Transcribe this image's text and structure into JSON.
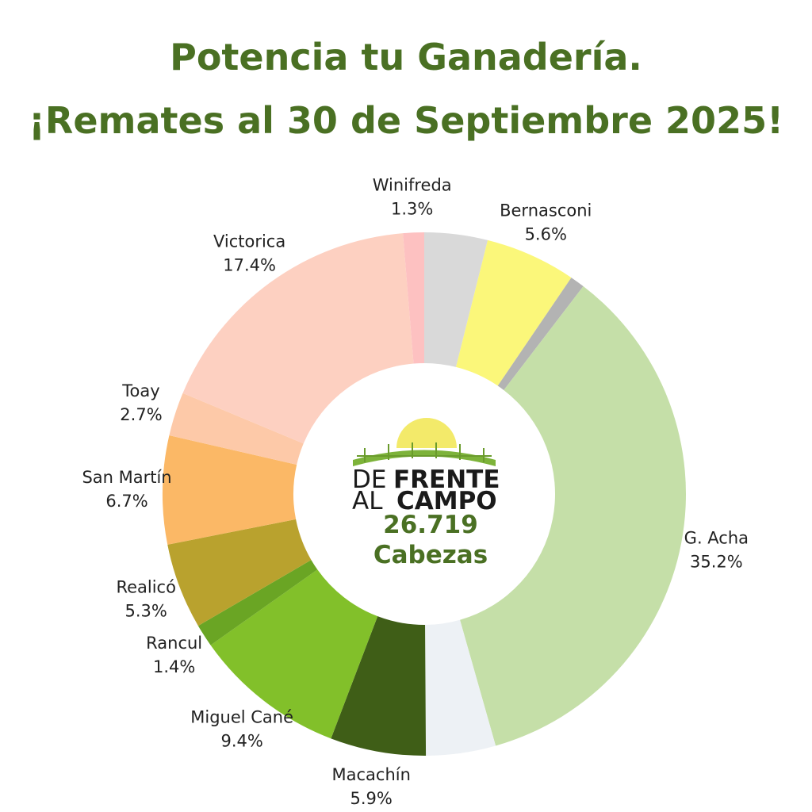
{
  "chart_data": {
    "type": "donut",
    "title": [
      "Potencia tu Ganadería.",
      "¡Remates al 30 de Septiembre 2025!"
    ],
    "categories": [
      null,
      "Bernasconi",
      null,
      "G. Acha",
      null,
      "Macachín",
      "Miguel Cané",
      "Rancul",
      "Realicó",
      "San Martín",
      "Toay",
      "Victorica",
      "Winifreda"
    ],
    "values": [
      3.9,
      5.6,
      0.9,
      35.2,
      4.3,
      5.9,
      9.4,
      1.4,
      5.3,
      6.7,
      2.7,
      17.4,
      1.3
    ],
    "value_labels": [
      null,
      "5.6%",
      null,
      "35.2%",
      null,
      "5.9%",
      "9.4%",
      "1.4%",
      "5.3%",
      "6.7%",
      "2.7%",
      "17.4%",
      "1.3%"
    ],
    "colors": [
      "#d9d9d9",
      "#fbf77a",
      "#b3b3b3",
      "#c5dfa8",
      "#edf1f5",
      "#3f5e17",
      "#82c02a",
      "#6aa524",
      "#b9a22e",
      "#fbb866",
      "#fdc9a8",
      "#fdd0c1",
      "#fdc1c1"
    ],
    "center": {
      "logo": [
        "DE",
        "FRENTE",
        "AL",
        "CAMPO"
      ],
      "total": "26.719",
      "unit": "Cabezas"
    }
  }
}
